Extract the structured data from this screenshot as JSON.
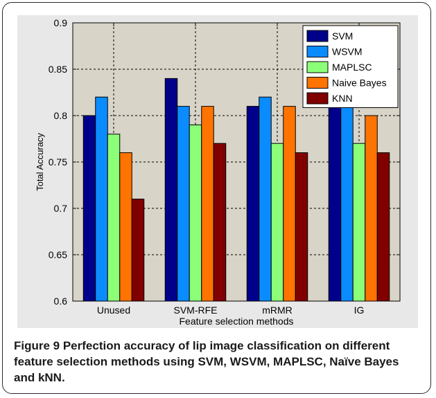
{
  "chart_data": {
    "type": "bar",
    "xlabel": "Feature selection methods",
    "ylabel": "Total Accuracy",
    "ylim": [
      0.6,
      0.9
    ],
    "yticks": [
      0.6,
      0.65,
      0.7,
      0.75,
      0.8,
      0.85,
      0.9
    ],
    "grid": true,
    "legend_position": "top-right",
    "categories": [
      "Unused",
      "SVM-RFE",
      "mRMR",
      "IG"
    ],
    "series": [
      {
        "name": "SVM",
        "color": "#00008b",
        "values": [
          0.8,
          0.84,
          0.81,
          0.81
        ]
      },
      {
        "name": "WSVM",
        "color": "#0a8cff",
        "values": [
          0.82,
          0.81,
          0.82,
          0.81
        ]
      },
      {
        "name": "MAPLSC",
        "color": "#8cff78",
        "values": [
          0.78,
          0.79,
          0.77,
          0.77
        ]
      },
      {
        "name": "Naive Bayes",
        "color": "#ff7300",
        "values": [
          0.76,
          0.81,
          0.81,
          0.8
        ]
      },
      {
        "name": "KNN",
        "color": "#800000",
        "values": [
          0.71,
          0.77,
          0.76,
          0.76
        ]
      }
    ]
  },
  "caption": {
    "lead": "Figure 9",
    "text": " Perfection accuracy of lip image classification on different feature selection methods using SVM, WSVM, MAPLSC, Naïve Bayes and kNN."
  }
}
